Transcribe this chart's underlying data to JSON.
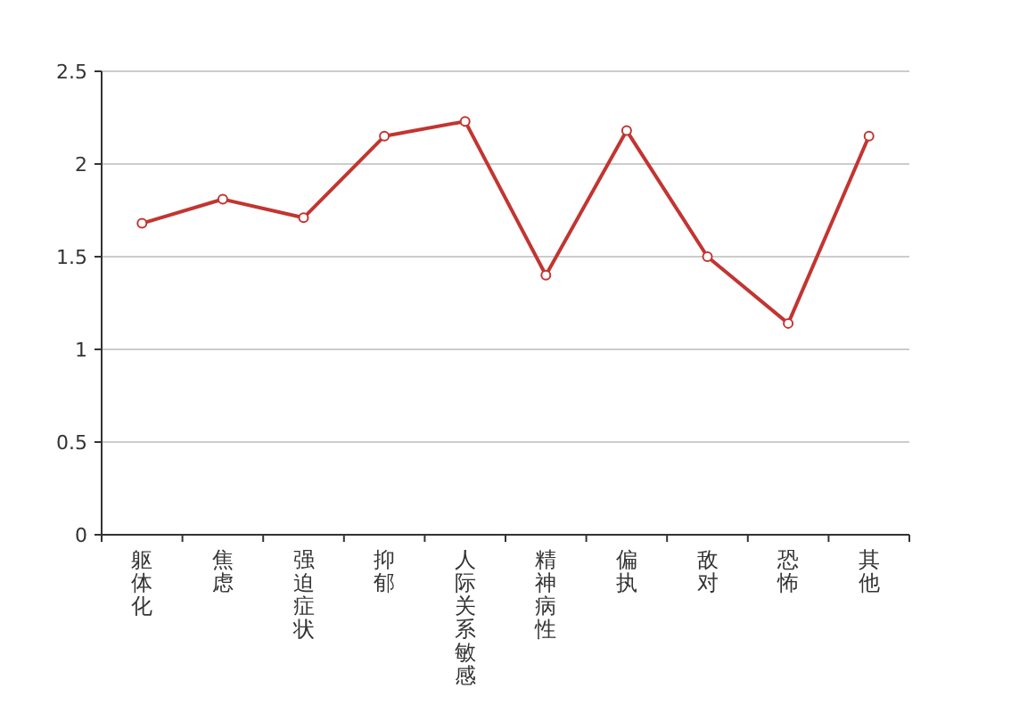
{
  "chart_data": {
    "type": "line",
    "categories": [
      "躯体化",
      "焦虑",
      "强迫症状",
      "抑郁",
      "人际关系敏感",
      "精神病性",
      "偏执",
      "敌对",
      "恐怖",
      "其他"
    ],
    "series": [
      {
        "color": "#c23531",
        "values": [
          1.68,
          1.81,
          1.71,
          2.15,
          2.23,
          1.4,
          2.18,
          1.5,
          1.14,
          2.15
        ]
      }
    ],
    "ylim": [
      0,
      2.5
    ],
    "yticks": [
      0,
      0.5,
      1,
      1.5,
      2,
      2.5
    ],
    "grid": "y",
    "marker": "circle",
    "line_style": "solid"
  }
}
